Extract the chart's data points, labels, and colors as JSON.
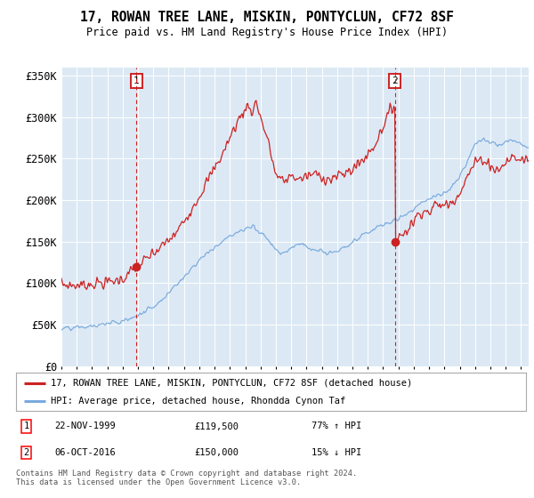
{
  "title": "17, ROWAN TREE LANE, MISKIN, PONTYCLUN, CF72 8SF",
  "subtitle": "Price paid vs. HM Land Registry's House Price Index (HPI)",
  "bg_color": "#dce9f5",
  "red_line_color": "#cc2222",
  "blue_line_color": "#7aaadd",
  "marker1_x": 1999.9,
  "marker1_y": 119500,
  "marker1_label": "1",
  "marker2_x": 2016.77,
  "marker2_y": 150000,
  "marker2_label": "2",
  "ylim": [
    0,
    360000
  ],
  "xlim_start": 1995.0,
  "xlim_end": 2025.5,
  "yticks": [
    0,
    50000,
    100000,
    150000,
    200000,
    250000,
    300000,
    350000
  ],
  "ytick_labels": [
    "£0",
    "£50K",
    "£100K",
    "£150K",
    "£200K",
    "£250K",
    "£300K",
    "£350K"
  ],
  "xticks": [
    1995,
    1996,
    1997,
    1998,
    1999,
    2000,
    2001,
    2002,
    2003,
    2004,
    2005,
    2006,
    2007,
    2008,
    2009,
    2010,
    2011,
    2012,
    2013,
    2014,
    2015,
    2016,
    2017,
    2018,
    2019,
    2020,
    2021,
    2022,
    2023,
    2024,
    2025
  ],
  "legend_label_red": "17, ROWAN TREE LANE, MISKIN, PONTYCLUN, CF72 8SF (detached house)",
  "legend_label_blue": "HPI: Average price, detached house, Rhondda Cynon Taf",
  "annotation1_date": "22-NOV-1999",
  "annotation1_price": "£119,500",
  "annotation1_hpi": "77% ↑ HPI",
  "annotation2_date": "06-OCT-2016",
  "annotation2_price": "£150,000",
  "annotation2_hpi": "15% ↓ HPI",
  "footer": "Contains HM Land Registry data © Crown copyright and database right 2024.\nThis data is licensed under the Open Government Licence v3.0."
}
